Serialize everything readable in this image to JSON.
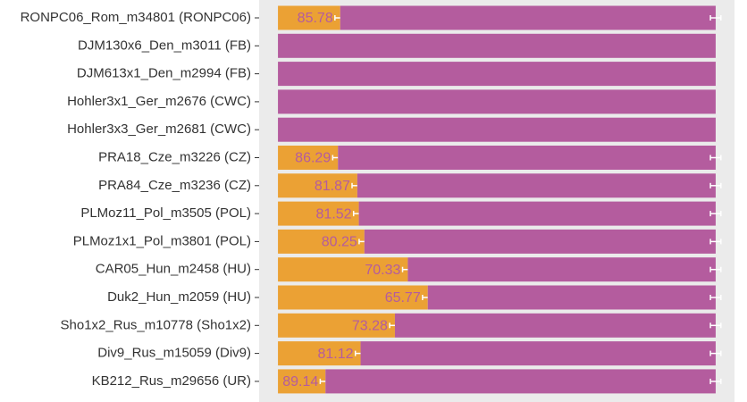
{
  "chart_data": {
    "type": "stacked-barh",
    "categories": [
      "RONPC06_Rom_m34801 (RONPC06)",
      "DJM130x6_Den_m3011 (FB)",
      "DJM613x1_Den_m2994 (FB)",
      "Hohler3x1_Ger_m2676 (CWC)",
      "Hohler3x3_Ger_m2681 (CWC)",
      "PRA18_Cze_m3226 (CZ)",
      "PRA84_Cze_m3236 (CZ)",
      "PLMoz11_Pol_m3505 (POL)",
      "PLMoz1x1_Pol_m3801 (POL)",
      "CAR05_Hun_m2458 (HU)",
      "Duk2_Hun_m2059 (HU)",
      "Sho1x2_Rus_m10778 (Sho1x2)",
      "Div9_Rus_m15059 (Div9)",
      "KB212_Rus_m29656 (UR)"
    ],
    "series": [
      {
        "color": "#eba134",
        "values": [
          14.22,
          0,
          0,
          0,
          0,
          13.71,
          18.13,
          18.48,
          19.75,
          29.67,
          34.23,
          26.72,
          18.88,
          10.86
        ],
        "errors": [
          1.2,
          0,
          0,
          0,
          0,
          1.2,
          1.2,
          1.2,
          1.2,
          1.2,
          1.2,
          1.2,
          1.2,
          1.2
        ]
      },
      {
        "color": "#b45c9e",
        "values": [
          85.78,
          100,
          100,
          100,
          100,
          86.29,
          81.87,
          81.52,
          80.25,
          70.33,
          65.77,
          73.28,
          81.12,
          89.14
        ],
        "errors": [
          1.2,
          0,
          0,
          0,
          0,
          1.2,
          1.2,
          1.2,
          1.2,
          1.2,
          1.2,
          1.2,
          1.2,
          1.2
        ]
      }
    ],
    "xlim": [
      -4.3,
      104.3
    ]
  }
}
